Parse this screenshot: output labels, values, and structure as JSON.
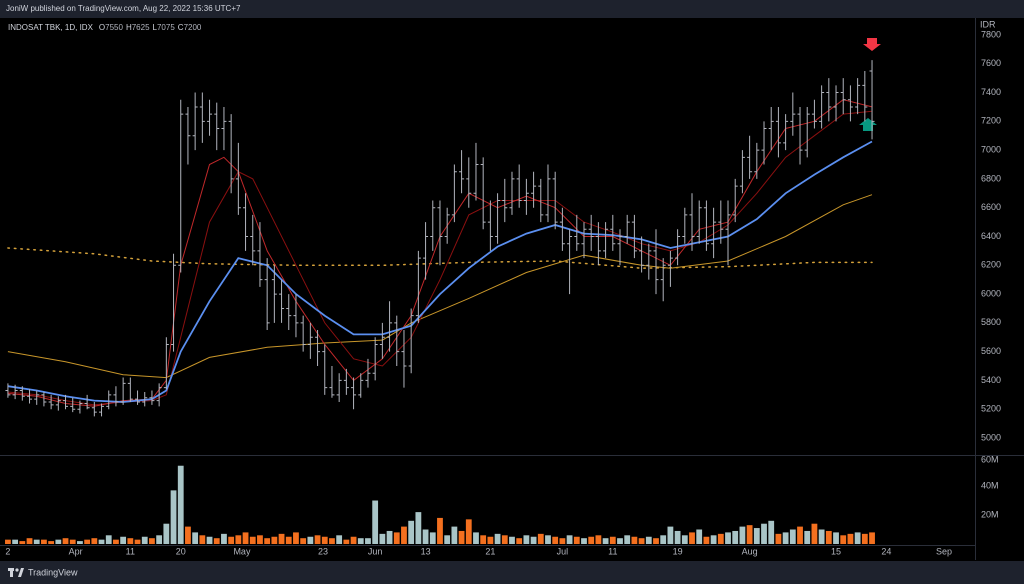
{
  "header": {
    "text": "JoniW published on TradingView.com, Aug 22, 2022 15:36 UTC+7"
  },
  "footer": {
    "logo_text": "TradingView"
  },
  "chart_data": {
    "type": "ohlc",
    "title": "INDOSAT TBK, 1D, IDX",
    "ohlc_legend": [
      {
        "label": "O",
        "value": 7550
      },
      {
        "label": "H",
        "value": 7625
      },
      {
        "label": "L",
        "value": 7075
      },
      {
        "label": "C",
        "value": 7200
      }
    ],
    "y_unit": "IDR",
    "xlim": [
      -1.1,
      134.3
    ],
    "xticks": [
      {
        "value": 0,
        "label": "2"
      },
      {
        "value": 9.4,
        "label": "Apr"
      },
      {
        "value": 17,
        "label": "11"
      },
      {
        "value": 24,
        "label": "20"
      },
      {
        "value": 32.5,
        "label": "May"
      },
      {
        "value": 43.75,
        "label": "23"
      },
      {
        "value": 51,
        "label": "Jun"
      },
      {
        "value": 58,
        "label": "13"
      },
      {
        "value": 67,
        "label": "21"
      },
      {
        "value": 77,
        "label": "Jul"
      },
      {
        "value": 84,
        "label": "11"
      },
      {
        "value": 93,
        "label": "19"
      },
      {
        "value": 103,
        "label": "Aug"
      },
      {
        "value": 115,
        "label": "15"
      },
      {
        "value": 122,
        "label": "24"
      },
      {
        "value": 130,
        "label": "Sep"
      }
    ],
    "ylim": [
      4882,
      7904
    ],
    "yticks": [
      5000,
      5200,
      5400,
      5600,
      5800,
      6000,
      6200,
      6400,
      6600,
      6800,
      7000,
      7200,
      7400,
      7600,
      7800
    ],
    "vlim": [
      0,
      61.4
    ],
    "vticks": [
      {
        "value": 20,
        "label": "20M"
      },
      {
        "value": 40,
        "label": "40M"
      },
      {
        "value": 60,
        "label": "60M"
      }
    ],
    "bar_color": "#b2b5be",
    "volume_colors": {
      "up": "#a9c5c7",
      "down": "#f4701f"
    },
    "bars": [
      [
        5330,
        5380,
        5280,
        5300
      ],
      [
        5300,
        5370,
        5270,
        5330
      ],
      [
        5330,
        5360,
        5260,
        5290
      ],
      [
        5290,
        5340,
        5240,
        5270
      ],
      [
        5270,
        5330,
        5230,
        5300
      ],
      [
        5300,
        5320,
        5220,
        5250
      ],
      [
        5250,
        5300,
        5200,
        5230
      ],
      [
        5230,
        5290,
        5190,
        5260
      ],
      [
        5260,
        5300,
        5200,
        5220
      ],
      [
        5220,
        5280,
        5180,
        5200
      ],
      [
        5200,
        5260,
        5170,
        5240
      ],
      [
        5240,
        5300,
        5200,
        5210
      ],
      [
        5210,
        5250,
        5150,
        5180
      ],
      [
        5180,
        5240,
        5150,
        5220
      ],
      [
        5220,
        5330,
        5200,
        5300
      ],
      [
        5300,
        5360,
        5220,
        5250
      ],
      [
        5250,
        5420,
        5230,
        5380
      ],
      [
        5380,
        5420,
        5250,
        5270
      ],
      [
        5270,
        5330,
        5230,
        5250
      ],
      [
        5250,
        5320,
        5220,
        5280
      ],
      [
        5280,
        5330,
        5230,
        5260
      ],
      [
        5260,
        5380,
        5220,
        5350
      ],
      [
        5350,
        5700,
        5340,
        5650
      ],
      [
        5650,
        6280,
        5600,
        6200
      ],
      [
        6200,
        7350,
        6150,
        7250
      ],
      [
        7250,
        7300,
        6900,
        7100
      ],
      [
        7100,
        7400,
        7000,
        7300
      ],
      [
        7300,
        7400,
        7050,
        7200
      ],
      [
        7200,
        7350,
        7100,
        7250
      ],
      [
        7250,
        7330,
        7000,
        7150
      ],
      [
        7150,
        7300,
        7000,
        7200
      ],
      [
        7200,
        7250,
        6700,
        6800
      ],
      [
        6800,
        7050,
        6550,
        6600
      ],
      [
        6600,
        6700,
        6300,
        6400
      ],
      [
        6400,
        6550,
        6200,
        6300
      ],
      [
        6300,
        6500,
        6050,
        6100
      ],
      [
        6100,
        6250,
        5750,
        5800
      ],
      [
        6100,
        6200,
        5800,
        6000
      ],
      [
        6000,
        6100,
        5800,
        5900
      ],
      [
        5900,
        6000,
        5750,
        5850
      ],
      [
        5850,
        6000,
        5700,
        5800
      ],
      [
        5800,
        5850,
        5600,
        5650
      ],
      [
        5650,
        5800,
        5550,
        5700
      ],
      [
        5700,
        5750,
        5500,
        5600
      ],
      [
        5600,
        5650,
        5300,
        5350
      ],
      [
        5350,
        5500,
        5280,
        5300
      ],
      [
        5300,
        5450,
        5250,
        5400
      ],
      [
        5400,
        5480,
        5300,
        5350
      ],
      [
        5350,
        5420,
        5200,
        5300
      ],
      [
        5300,
        5450,
        5280,
        5400
      ],
      [
        5400,
        5550,
        5350,
        5450
      ],
      [
        5450,
        5700,
        5400,
        5650
      ],
      [
        5650,
        5800,
        5550,
        5700
      ],
      [
        5700,
        5950,
        5600,
        5800
      ],
      [
        5800,
        5850,
        5500,
        5600
      ],
      [
        5600,
        5750,
        5350,
        5500
      ],
      [
        5500,
        5900,
        5450,
        5850
      ],
      [
        5850,
        6300,
        5800,
        6250
      ],
      [
        6250,
        6500,
        6100,
        6400
      ],
      [
        6400,
        6650,
        6300,
        6600
      ],
      [
        6600,
        6650,
        6200,
        6400
      ],
      [
        6400,
        6600,
        6350,
        6550
      ],
      [
        6550,
        6900,
        6500,
        6850
      ],
      [
        6850,
        7000,
        6700,
        6800
      ],
      [
        6800,
        6950,
        6600,
        6700
      ],
      [
        6700,
        7050,
        6650,
        6900
      ],
      [
        6900,
        6950,
        6450,
        6500
      ],
      [
        6500,
        6650,
        6300,
        6400
      ],
      [
        6400,
        6700,
        6350,
        6650
      ],
      [
        6650,
        6800,
        6500,
        6600
      ],
      [
        6600,
        6850,
        6550,
        6800
      ],
      [
        6800,
        6900,
        6600,
        6650
      ],
      [
        6650,
        6800,
        6550,
        6700
      ],
      [
        6700,
        6850,
        6600,
        6750
      ],
      [
        6750,
        6800,
        6500,
        6550
      ],
      [
        6550,
        6900,
        6500,
        6800
      ],
      [
        6800,
        6850,
        6450,
        6500
      ],
      [
        6500,
        6600,
        6300,
        6350
      ],
      [
        6350,
        6450,
        6000,
        6400
      ],
      [
        6400,
        6550,
        6300,
        6350
      ],
      [
        6350,
        6500,
        6250,
        6450
      ],
      [
        6450,
        6550,
        6300,
        6400
      ],
      [
        6400,
        6500,
        6200,
        6300
      ],
      [
        6300,
        6500,
        6250,
        6450
      ],
      [
        6450,
        6550,
        6300,
        6350
      ],
      [
        6350,
        6450,
        6200,
        6400
      ],
      [
        6400,
        6550,
        6350,
        6500
      ],
      [
        6500,
        6550,
        6250,
        6300
      ],
      [
        6300,
        6400,
        6150,
        6200
      ],
      [
        6200,
        6350,
        6100,
        6300
      ],
      [
        6300,
        6450,
        6000,
        6100
      ],
      [
        6100,
        6250,
        5950,
        6200
      ],
      [
        6200,
        6300,
        6050,
        6250
      ],
      [
        6250,
        6450,
        6200,
        6400
      ],
      [
        6400,
        6600,
        6350,
        6550
      ],
      [
        6550,
        6700,
        6300,
        6400
      ],
      [
        6400,
        6650,
        6350,
        6600
      ],
      [
        6600,
        6650,
        6300,
        6350
      ],
      [
        6350,
        6600,
        6250,
        6500
      ],
      [
        6500,
        6650,
        6350,
        6450
      ],
      [
        6450,
        6650,
        6200,
        6550
      ],
      [
        6550,
        6800,
        6500,
        6750
      ],
      [
        6750,
        7000,
        6700,
        6950
      ],
      [
        6950,
        7100,
        6800,
        6850
      ],
      [
        6850,
        7050,
        6800,
        7000
      ],
      [
        7000,
        7200,
        6900,
        7150
      ],
      [
        7150,
        7300,
        7000,
        7200
      ],
      [
        7200,
        7300,
        6950,
        7050
      ],
      [
        7050,
        7250,
        7000,
        7200
      ],
      [
        7200,
        7400,
        7100,
        7250
      ],
      [
        7250,
        7300,
        6900,
        7000
      ],
      [
        7000,
        7300,
        6950,
        7250
      ],
      [
        7250,
        7350,
        7150,
        7200
      ],
      [
        7200,
        7450,
        7150,
        7400
      ],
      [
        7400,
        7500,
        7200,
        7300
      ],
      [
        7300,
        7450,
        7200,
        7400
      ],
      [
        7400,
        7500,
        7250,
        7350
      ],
      [
        7350,
        7450,
        7200,
        7300
      ],
      [
        7300,
        7500,
        7250,
        7450
      ],
      [
        7450,
        7550,
        7200,
        7300
      ],
      [
        7550,
        7625,
        7075,
        7200
      ]
    ],
    "volume": [
      3,
      3,
      2,
      4,
      3,
      3,
      2,
      3,
      4,
      3,
      2,
      3,
      4,
      3,
      6,
      3,
      5,
      4,
      3,
      5,
      4,
      6,
      14,
      37,
      54,
      12,
      8,
      6,
      5,
      4,
      7,
      5,
      6,
      8,
      5,
      6,
      4,
      5,
      7,
      5,
      8,
      4,
      5,
      6,
      5,
      4,
      6,
      3,
      5,
      4,
      4,
      30,
      7,
      9,
      8,
      12,
      16,
      22,
      10,
      8,
      18,
      6,
      12,
      9,
      17,
      8,
      6,
      5,
      7,
      6,
      5,
      4,
      6,
      5,
      7,
      6,
      5,
      4,
      6,
      5,
      4,
      5,
      6,
      4,
      5,
      4,
      6,
      5,
      4,
      5,
      4,
      6,
      12,
      9,
      6,
      8,
      10,
      5,
      6,
      7,
      8,
      9,
      12,
      13,
      11,
      14,
      16,
      7,
      8,
      10,
      12,
      9,
      14,
      10,
      9,
      8,
      6,
      7,
      8,
      7,
      8
    ],
    "lines": [
      {
        "color": "#d4a13a",
        "width": 1.5,
        "dash": true,
        "x": [
          0,
          12,
          20,
          28,
          40,
          52,
          64,
          76,
          88,
          100,
          112,
          120
        ],
        "values": [
          6320,
          6280,
          6230,
          6210,
          6200,
          6200,
          6220,
          6230,
          6180,
          6190,
          6220,
          6220
        ]
      },
      {
        "color": "#c8962a",
        "width": 1,
        "dash": false,
        "x": [
          0,
          8,
          16,
          22,
          28,
          36,
          44,
          52,
          56,
          64,
          72,
          80,
          88,
          92,
          100,
          108,
          116,
          120
        ],
        "values": [
          5600,
          5530,
          5440,
          5420,
          5560,
          5630,
          5660,
          5680,
          5800,
          5970,
          6150,
          6270,
          6200,
          6180,
          6230,
          6400,
          6620,
          6690
        ]
      },
      {
        "color": "#8b1010",
        "width": 1,
        "dash": false,
        "x": [
          0,
          4,
          8,
          12,
          16,
          20,
          22,
          24,
          28,
          32,
          34,
          36,
          40,
          44,
          48,
          52,
          56,
          60,
          64,
          68,
          72,
          76,
          80,
          84,
          88,
          92,
          96,
          100,
          104,
          108,
          112,
          116,
          120
        ],
        "values": [
          5320,
          5300,
          5260,
          5230,
          5250,
          5260,
          5300,
          5700,
          6500,
          6850,
          6800,
          6600,
          6200,
          5800,
          5550,
          5500,
          5700,
          6100,
          6550,
          6650,
          6650,
          6650,
          6500,
          6430,
          6350,
          6300,
          6360,
          6480,
          6700,
          6950,
          7100,
          7250,
          7270
        ]
      },
      {
        "color": "#c0282a",
        "width": 1,
        "dash": false,
        "x": [
          0,
          4,
          8,
          12,
          16,
          20,
          22,
          24,
          28,
          30,
          32,
          36,
          40,
          44,
          48,
          52,
          56,
          60,
          64,
          68,
          72,
          76,
          80,
          84,
          88,
          92,
          96,
          100,
          104,
          108,
          112,
          116,
          120
        ],
        "values": [
          5310,
          5290,
          5240,
          5220,
          5260,
          5270,
          5400,
          6200,
          6900,
          6950,
          6850,
          6300,
          5950,
          5650,
          5400,
          5550,
          5850,
          6400,
          6700,
          6600,
          6680,
          6600,
          6400,
          6400,
          6300,
          6200,
          6450,
          6500,
          6850,
          7150,
          7200,
          7350,
          7300
        ]
      },
      {
        "color": "#5b8ff0",
        "width": 1.8,
        "dash": false,
        "x": [
          0,
          4,
          8,
          12,
          16,
          20,
          22,
          24,
          28,
          32,
          36,
          40,
          44,
          48,
          52,
          56,
          60,
          64,
          68,
          72,
          76,
          80,
          84,
          88,
          92,
          96,
          100,
          104,
          108,
          112,
          116,
          120
        ],
        "values": [
          5360,
          5330,
          5290,
          5260,
          5250,
          5270,
          5330,
          5600,
          5950,
          6250,
          6200,
          6000,
          5850,
          5720,
          5720,
          5780,
          6000,
          6180,
          6330,
          6420,
          6480,
          6420,
          6410,
          6380,
          6320,
          6360,
          6400,
          6520,
          6700,
          6830,
          6950,
          7060
        ]
      }
    ]
  }
}
